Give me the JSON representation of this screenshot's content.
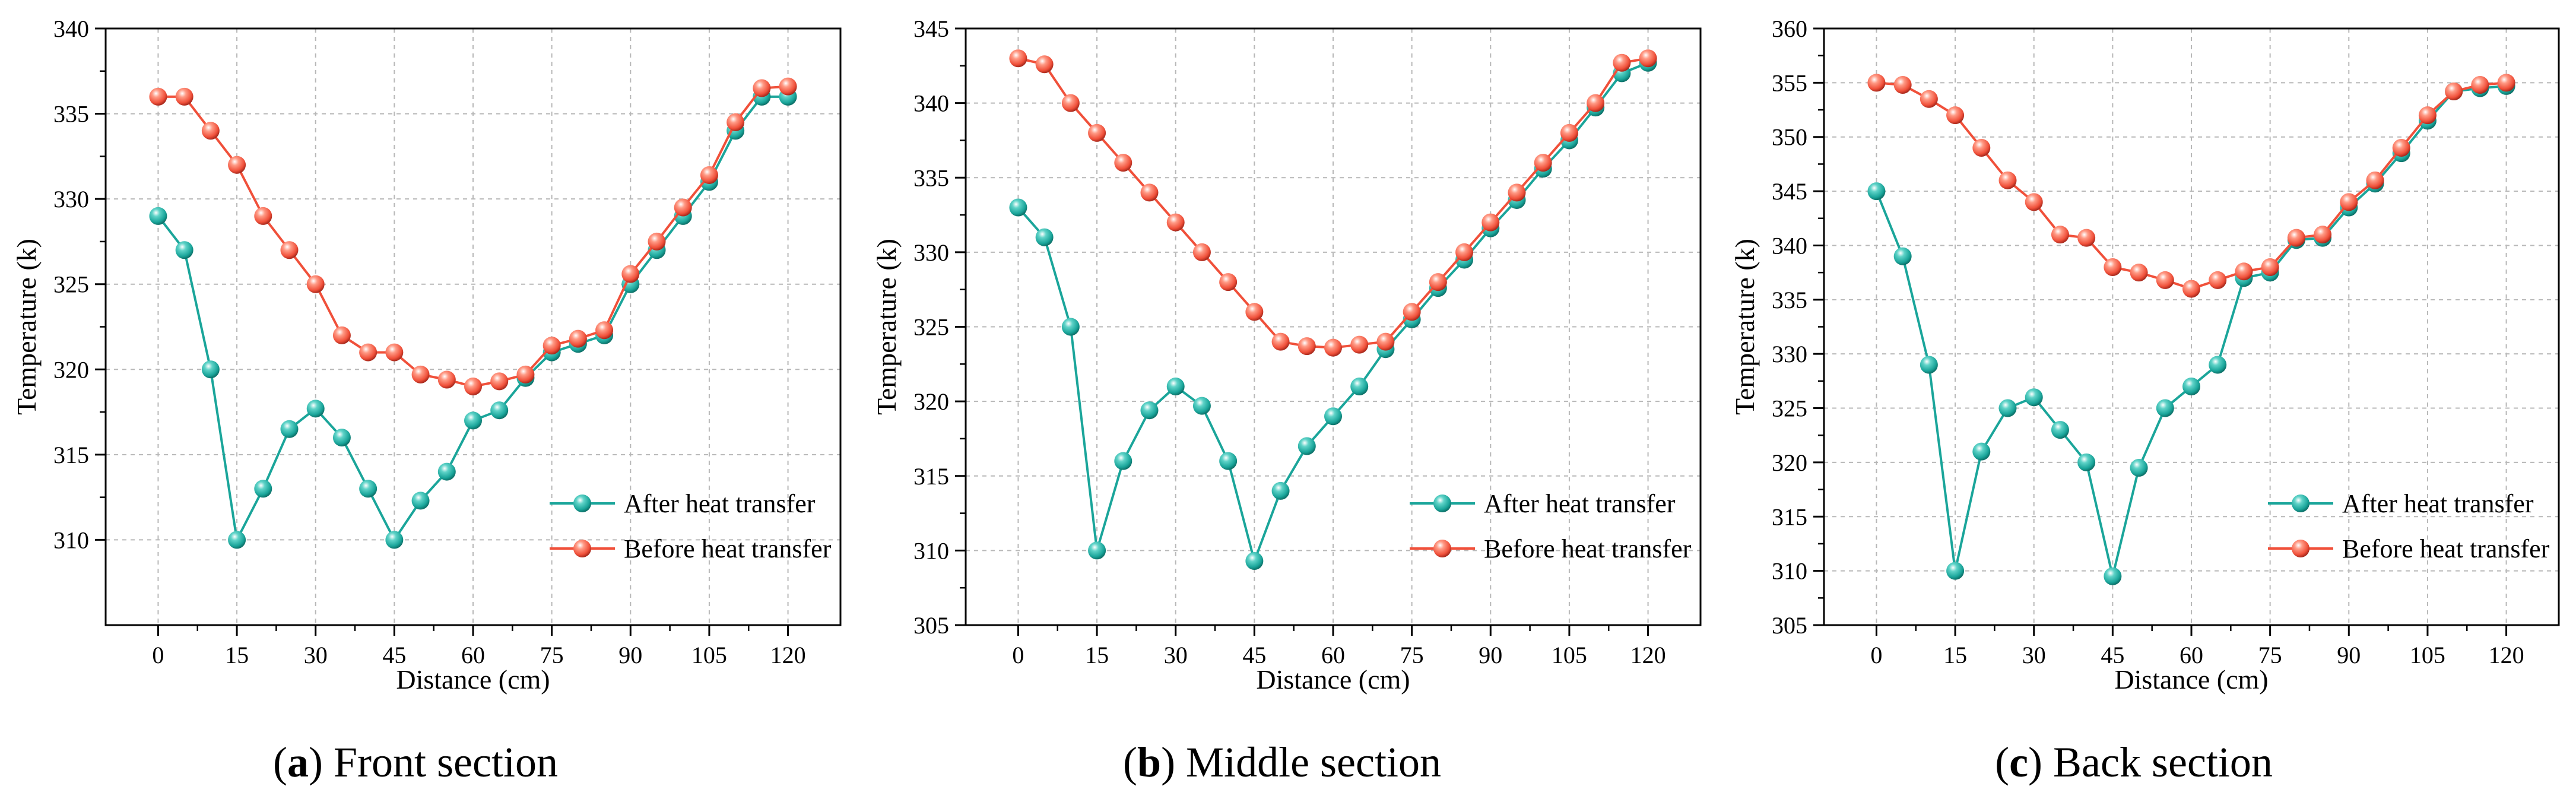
{
  "figure": {
    "panels": [
      {
        "caption_letter": "a",
        "caption_text": " Front section"
      },
      {
        "caption_letter": "b",
        "caption_text": " Middle section"
      },
      {
        "caption_letter": "c",
        "caption_text": " Back section"
      }
    ],
    "colors": {
      "after": "#1aa59a",
      "before": "#f0503a",
      "grid": "#b8b8b8"
    }
  },
  "chart_data": [
    {
      "type": "line",
      "xlabel": "Distance (cm)",
      "ylabel": "Temperature (k)",
      "xlim": [
        -10,
        130
      ],
      "ylim": [
        305,
        340
      ],
      "xticks": [
        0,
        15,
        30,
        45,
        60,
        75,
        90,
        105,
        120
      ],
      "yticks": [
        310,
        315,
        320,
        325,
        330,
        335,
        340
      ],
      "legend_position": "bottom-right",
      "x": [
        0,
        5,
        10,
        15,
        20,
        25,
        30,
        35,
        40,
        45,
        50,
        55,
        60,
        65,
        70,
        75,
        80,
        85,
        90,
        95,
        100,
        105,
        110,
        115,
        120
      ],
      "series": [
        {
          "name": "After heat transfer",
          "values": [
            329,
            327,
            320,
            310,
            313,
            316.5,
            317.7,
            316,
            313,
            310,
            312.3,
            314,
            317,
            317.6,
            319.5,
            321,
            321.5,
            322,
            325,
            327,
            329,
            331,
            334,
            336,
            336
          ]
        },
        {
          "name": "Before heat transfer",
          "values": [
            336,
            336,
            334,
            332,
            329,
            327,
            325,
            322,
            321,
            321,
            319.7,
            319.4,
            319,
            319.3,
            319.7,
            321.4,
            321.8,
            322.3,
            325.6,
            327.5,
            329.5,
            331.4,
            334.5,
            336.5,
            336.6
          ]
        }
      ]
    },
    {
      "type": "line",
      "xlabel": "Distance (cm)",
      "ylabel": "Temperature (k)",
      "xlim": [
        -10,
        130
      ],
      "ylim": [
        305,
        345
      ],
      "xticks": [
        0,
        15,
        30,
        45,
        60,
        75,
        90,
        105,
        120
      ],
      "yticks": [
        305,
        310,
        315,
        320,
        325,
        330,
        335,
        340,
        345
      ],
      "legend_position": "bottom-right",
      "x": [
        0,
        5,
        10,
        15,
        20,
        25,
        30,
        35,
        40,
        45,
        50,
        55,
        60,
        65,
        70,
        75,
        80,
        85,
        90,
        95,
        100,
        105,
        110,
        115,
        120
      ],
      "series": [
        {
          "name": "After heat transfer",
          "values": [
            333,
            331,
            325,
            310,
            316,
            319.4,
            321,
            319.7,
            316,
            309.3,
            314,
            317,
            319,
            321,
            323.5,
            325.5,
            327.6,
            329.5,
            331.6,
            333.5,
            335.6,
            337.5,
            339.7,
            342,
            342.7
          ]
        },
        {
          "name": "Before heat transfer",
          "values": [
            343,
            342.6,
            340,
            338,
            336,
            334,
            332,
            330,
            328,
            326,
            324,
            323.7,
            323.6,
            323.8,
            324,
            326,
            328,
            330,
            332,
            334,
            336,
            338,
            340,
            342.7,
            343
          ]
        }
      ]
    },
    {
      "type": "line",
      "xlabel": "Distance (cm)",
      "ylabel": "Temperature (k)",
      "xlim": [
        -10,
        130
      ],
      "ylim": [
        305,
        360
      ],
      "xticks": [
        0,
        15,
        30,
        45,
        60,
        75,
        90,
        105,
        120
      ],
      "yticks": [
        305,
        310,
        315,
        320,
        325,
        330,
        335,
        340,
        345,
        350,
        355,
        360
      ],
      "legend_position": "bottom-right",
      "x": [
        0,
        5,
        10,
        15,
        20,
        25,
        30,
        35,
        40,
        45,
        50,
        55,
        60,
        65,
        70,
        75,
        80,
        85,
        90,
        95,
        100,
        105,
        110,
        115,
        120
      ],
      "series": [
        {
          "name": "After heat transfer",
          "values": [
            345,
            339,
            329,
            310,
            321,
            325,
            326,
            323,
            320,
            309.5,
            319.5,
            325,
            327,
            329,
            337,
            337.5,
            340.5,
            340.7,
            343.5,
            345.7,
            348.5,
            351.5,
            354.2,
            354.5,
            354.7
          ]
        },
        {
          "name": "Before heat transfer",
          "values": [
            355,
            354.8,
            353.5,
            352,
            349,
            346,
            344,
            341,
            340.7,
            338,
            337.5,
            336.8,
            336,
            336.8,
            337.6,
            338,
            340.7,
            341,
            344,
            346,
            349,
            352,
            354.2,
            354.8,
            355
          ]
        }
      ]
    }
  ]
}
